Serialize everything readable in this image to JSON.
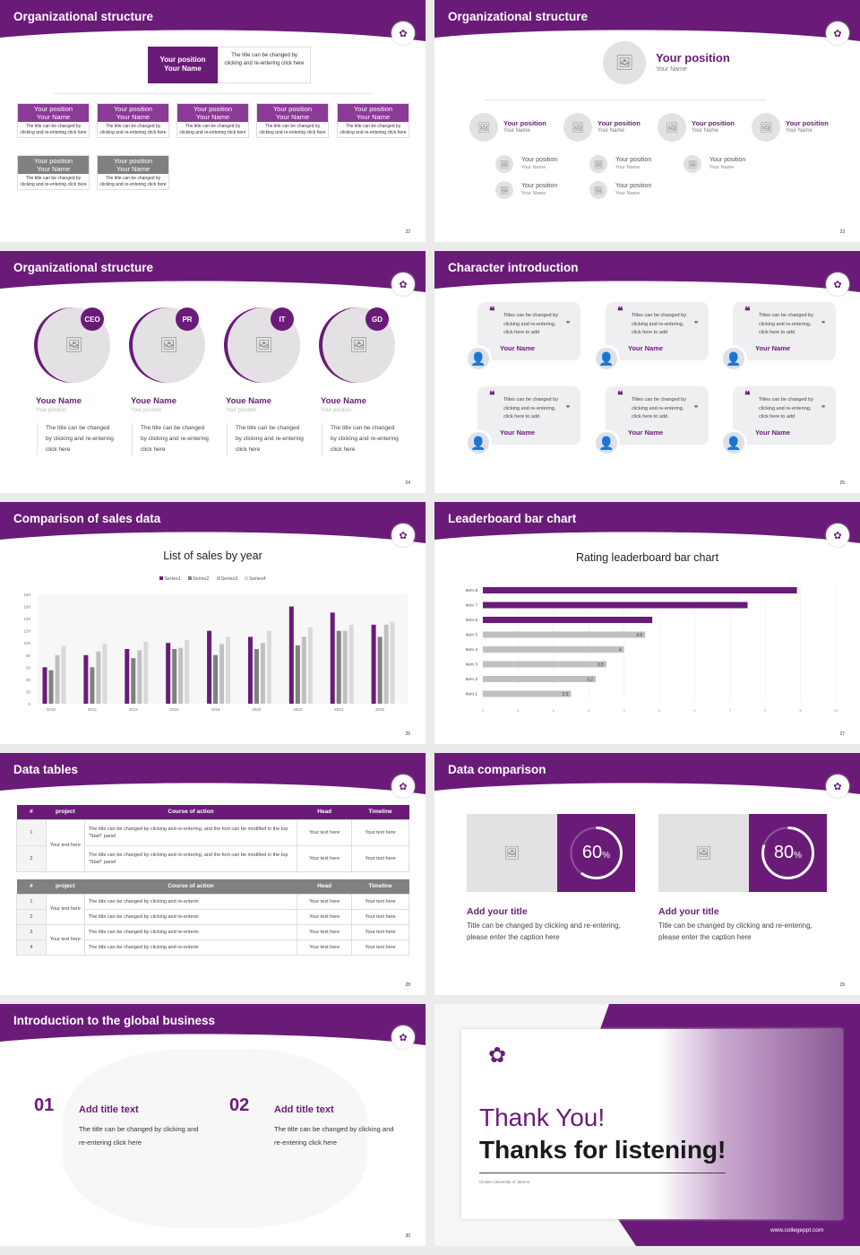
{
  "colors": {
    "brand": "#6a1b78",
    "gray": "#808080",
    "light": "#c0c0c0",
    "lighter": "#d9d9d9"
  },
  "slides": {
    "s22": {
      "title": "Organizational structure",
      "page": "22",
      "top": {
        "position": "Your position",
        "name": "Your Name",
        "desc": "The title can be changed by clicking and re-entering click here"
      },
      "row1": [
        {
          "position": "Your position",
          "name": "Your Name",
          "desc": "The title can be changed by clicking and re-entering click here"
        },
        {
          "position": "Your position",
          "name": "Your Name",
          "desc": "The title can be changed by clicking and re-entering click here"
        },
        {
          "position": "Your position",
          "name": "Your Name",
          "desc": "The title can be changed by clicking and re-entering click here"
        },
        {
          "position": "Your position",
          "name": "Your Name",
          "desc": "The title can be changed by clicking and re-entering click here"
        },
        {
          "position": "Your position",
          "name": "Your Name",
          "desc": "The title can be changed by clicking and re-entering click here"
        }
      ],
      "row2": [
        {
          "position": "Your position",
          "name": "Your Name",
          "desc": "The title can be changed by clicking and re-entering click here"
        },
        {
          "position": "Your position",
          "name": "Your Name",
          "desc": "The title can be changed by clicking and re-entering click here"
        }
      ]
    },
    "s23": {
      "title": "Organizational structure",
      "page": "23",
      "top": {
        "position": "Your position",
        "name": "Your Name"
      },
      "row": [
        {
          "position": "Your position",
          "name": "Your Name"
        },
        {
          "position": "Your position",
          "name": "Your Name"
        },
        {
          "position": "Your position",
          "name": "Your Name"
        },
        {
          "position": "Your position",
          "name": "Your Name"
        }
      ],
      "sub": [
        {
          "position": "Your position",
          "name": "Your Name"
        },
        {
          "position": "Your position",
          "name": "Your Name"
        },
        {
          "position": "Your position",
          "name": "Your Name"
        },
        {
          "position": "Your position",
          "name": "Your Name"
        },
        {
          "position": "Your position",
          "name": "Your Name"
        }
      ]
    },
    "s24": {
      "title": "Organizational structure",
      "page": "24",
      "people": [
        {
          "badge": "CEO",
          "name": "Youe Name",
          "position": "Your position",
          "desc": "The title can be changed by clicking and re-entering click here"
        },
        {
          "badge": "PR",
          "name": "Youe Name",
          "position": "Your position",
          "desc": "The title can be changed by clicking and re-entering click here"
        },
        {
          "badge": "IT",
          "name": "Youe Name",
          "position": "Your position",
          "desc": "The title can be changed by clicking and re-entering click here"
        },
        {
          "badge": "GD",
          "name": "Youe Name",
          "position": "Your position",
          "desc": "The title can be changed by clicking and re-entering click here"
        }
      ]
    },
    "s25": {
      "title": "Character introduction",
      "page": "25",
      "cards": [
        {
          "quote": "Titles can be changed by clicking and re-entering, click here to add",
          "name": "Your Name"
        },
        {
          "quote": "Titles can be changed by clicking and re-entering, click here to add",
          "name": "Your Name"
        },
        {
          "quote": "Titles can be changed by clicking and re-entering, click here to add",
          "name": "Your Name"
        },
        {
          "quote": "Titles can be changed by clicking and re-entering, click here to add",
          "name": "Your Name"
        },
        {
          "quote": "Titles can be changed by clicking and re-entering, click here to add",
          "name": "Your Name"
        },
        {
          "quote": "Titles can be changed by clicking and re-entering, click here to add",
          "name": "Your Name"
        }
      ]
    },
    "s26": {
      "title": "Comparison of sales data",
      "page": "26"
    },
    "s27": {
      "title": "Leaderboard bar chart",
      "page": "27"
    },
    "s28": {
      "title": "Data tables",
      "page": "28",
      "headers": [
        "#",
        "project",
        "Course of action",
        "Head",
        "Timeline"
      ],
      "t1": {
        "project": "Your text here",
        "rows": [
          {
            "n": "1",
            "action": "The title can be changed by clicking and re-entering, and the font can be modified in the top \"Start\" panel",
            "head": "Your text here",
            "time": "Your text here"
          },
          {
            "n": "2",
            "action": "The title can be changed by clicking and re-entering, and the font can be modified in the top \"Start\" panel",
            "head": "Your text here",
            "time": "Your text here"
          }
        ]
      },
      "t2": {
        "projects": [
          "Your text here",
          "Your text here"
        ],
        "rows": [
          {
            "n": "1",
            "action": "The title can be changed by clicking and re-enterin",
            "head": "Your text here",
            "time": "Your text here"
          },
          {
            "n": "2",
            "action": "The title can be changed by clicking and re-enterin",
            "head": "Your text here",
            "time": "Your text here"
          },
          {
            "n": "3",
            "action": "The title can be changed by clicking and re-enterin",
            "head": "Your text here",
            "time": "Your text here"
          },
          {
            "n": "4",
            "action": "The title can be changed by clicking and re-enterin",
            "head": "Your text here",
            "time": "Your text here"
          }
        ]
      }
    },
    "s29": {
      "title": "Data comparison",
      "page": "29",
      "items": [
        {
          "percent": 60,
          "value": "60",
          "unit": "%",
          "title": "Add your title",
          "desc": "Title can be changed by clicking and re-entering, please enter the caption here"
        },
        {
          "percent": 80,
          "value": "80",
          "unit": "%",
          "title": "Add your title",
          "desc": "Title can be changed by clicking and re-entering, please enter the caption here"
        }
      ]
    },
    "s30": {
      "title": "Introduction to the global business",
      "page": "30",
      "items": [
        {
          "num": "01",
          "title": "Add title text",
          "desc": "The title can be changed by clicking and re-entering click here"
        },
        {
          "num": "02",
          "title": "Add title text",
          "desc": "The title can be changed by clicking and re-entering click here"
        }
      ]
    },
    "s31": {
      "thanks": "Thank You!",
      "subtitle": "Thanks for listening!",
      "university": "Cluster University of Jammu",
      "website": "www.collegeppt.com",
      "logo_text": "CLUSTER UNIVERSITY"
    }
  },
  "chart_data": [
    {
      "type": "bar",
      "title": "List of sales by year",
      "xlabel": "",
      "ylabel": "",
      "ylim": [
        0,
        180
      ],
      "yticks": [
        0,
        20,
        40,
        60,
        80,
        100,
        120,
        140,
        160,
        180
      ],
      "legend": "top",
      "grid": false,
      "categories": [
        "2010",
        "2012",
        "2014",
        "2016",
        "2018",
        "2020",
        "2022",
        "2024",
        "2026"
      ],
      "series": [
        {
          "name": "Series1",
          "color": "#6a1b78",
          "values": [
            60,
            80,
            90,
            100,
            120,
            110,
            160,
            150,
            130
          ]
        },
        {
          "name": "Series2",
          "color": "#808080",
          "values": [
            55,
            60,
            75,
            90,
            80,
            90,
            96,
            120,
            110
          ]
        },
        {
          "name": "Series3",
          "color": "#c0c0c0",
          "values": [
            80,
            86,
            88,
            92,
            98,
            100,
            110,
            120,
            130
          ]
        },
        {
          "name": "Series4",
          "color": "#d9d9d9",
          "values": [
            95,
            99,
            102,
            105,
            110,
            120,
            126,
            130,
            135
          ]
        }
      ]
    },
    {
      "type": "bar",
      "orientation": "horizontal",
      "title": "Rating leaderboard bar chart",
      "xlim": [
        0,
        10
      ],
      "xticks": [
        0,
        1,
        2,
        3,
        4,
        5,
        6,
        7,
        8,
        9,
        10
      ],
      "grid": true,
      "categories": [
        "Item 1",
        "Item 2",
        "Item 3",
        "Item 4",
        "Item 5",
        "Item 6",
        "Item 7",
        "Item 8"
      ],
      "values": [
        2.5,
        3.2,
        3.5,
        4,
        4.6,
        4.8,
        7.5,
        8.9
      ],
      "labels": [
        "2.5",
        "3.2",
        "3.5",
        "4",
        "4.6",
        "",
        "",
        ""
      ],
      "colors": [
        "#c0c0c0",
        "#c0c0c0",
        "#c0c0c0",
        "#c0c0c0",
        "#c0c0c0",
        "#6a1b78",
        "#6a1b78",
        "#6a1b78"
      ]
    }
  ]
}
